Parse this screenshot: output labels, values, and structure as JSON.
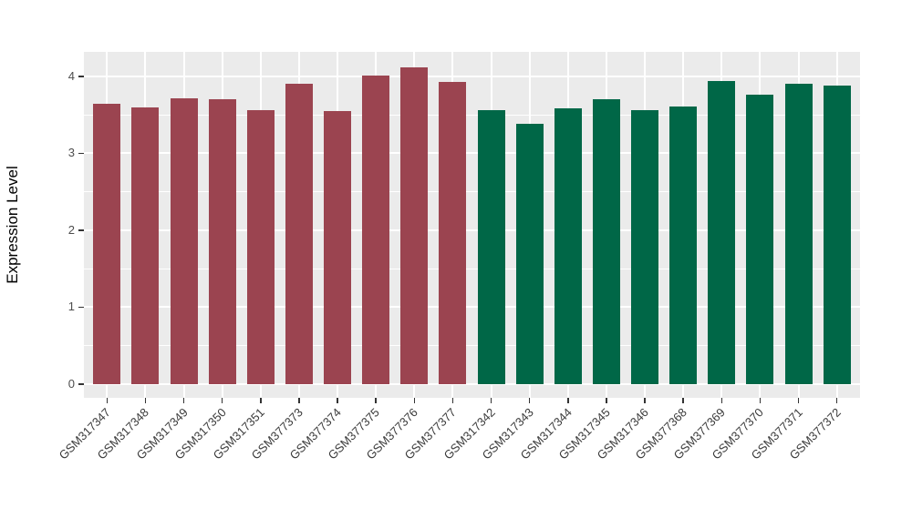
{
  "chart_data": {
    "type": "bar",
    "title": "",
    "xlabel": "",
    "ylabel": "Expression Level",
    "legend_position": "none",
    "grid": true,
    "panel_background": "#EBEBEB",
    "gridline_color": "#ffffff",
    "ylim": [
      -0.18,
      4.32
    ],
    "yticks": [
      0,
      1,
      2,
      3,
      4
    ],
    "categories": [
      "GSM317347",
      "GSM317348",
      "GSM317349",
      "GSM317350",
      "GSM317351",
      "GSM377373",
      "GSM377374",
      "GSM377375",
      "GSM377376",
      "GSM377377",
      "GSM317342",
      "GSM317343",
      "GSM317344",
      "GSM317345",
      "GSM317346",
      "GSM377368",
      "GSM377369",
      "GSM377370",
      "GSM377371",
      "GSM377372"
    ],
    "values": [
      3.64,
      3.6,
      3.72,
      3.7,
      3.56,
      3.9,
      3.55,
      4.01,
      4.12,
      3.93,
      3.56,
      3.38,
      3.59,
      3.7,
      3.56,
      3.61,
      3.94,
      3.76,
      3.91,
      3.88
    ],
    "groups": [
      "group1",
      "group1",
      "group1",
      "group1",
      "group1",
      "group1",
      "group1",
      "group1",
      "group1",
      "group1",
      "group2",
      "group2",
      "group2",
      "group2",
      "group2",
      "group2",
      "group2",
      "group2",
      "group2",
      "group2"
    ],
    "palette": {
      "group1": "#9B4450",
      "group2": "#006747"
    }
  }
}
